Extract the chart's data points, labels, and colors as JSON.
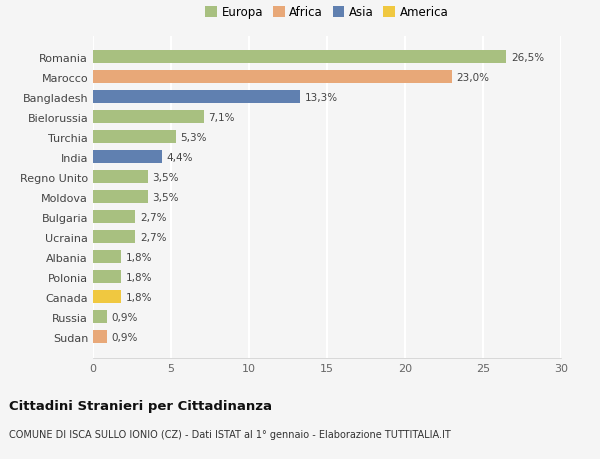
{
  "countries": [
    "Sudan",
    "Russia",
    "Canada",
    "Polonia",
    "Albania",
    "Ucraina",
    "Bulgaria",
    "Moldova",
    "Regno Unito",
    "India",
    "Turchia",
    "Bielorussia",
    "Bangladesh",
    "Marocco",
    "Romania"
  ],
  "values": [
    0.9,
    0.9,
    1.8,
    1.8,
    1.8,
    2.7,
    2.7,
    3.5,
    3.5,
    4.4,
    5.3,
    7.1,
    13.3,
    23.0,
    26.5
  ],
  "labels": [
    "0,9%",
    "0,9%",
    "1,8%",
    "1,8%",
    "1,8%",
    "2,7%",
    "2,7%",
    "3,5%",
    "3,5%",
    "4,4%",
    "5,3%",
    "7,1%",
    "13,3%",
    "23,0%",
    "26,5%"
  ],
  "continents": [
    "Africa",
    "Europa",
    "America",
    "Europa",
    "Europa",
    "Europa",
    "Europa",
    "Europa",
    "Europa",
    "Asia",
    "Europa",
    "Europa",
    "Asia",
    "Africa",
    "Europa"
  ],
  "colors": {
    "Europa": "#a8c080",
    "Africa": "#e8a878",
    "Asia": "#6080b0",
    "America": "#f0c840"
  },
  "legend_labels": [
    "Europa",
    "Africa",
    "Asia",
    "America"
  ],
  "legend_colors": [
    "#a8c080",
    "#e8a878",
    "#6080b0",
    "#f0c840"
  ],
  "xlim": [
    0,
    30
  ],
  "xticks": [
    0,
    5,
    10,
    15,
    20,
    25,
    30
  ],
  "title": "Cittadini Stranieri per Cittadinanza",
  "subtitle": "COMUNE DI ISCA SULLO IONIO (CZ) - Dati ISTAT al 1° gennaio - Elaborazione TUTTITALIA.IT",
  "bg_color": "#f5f5f5",
  "grid_color": "#ffffff",
  "bar_height": 0.65
}
